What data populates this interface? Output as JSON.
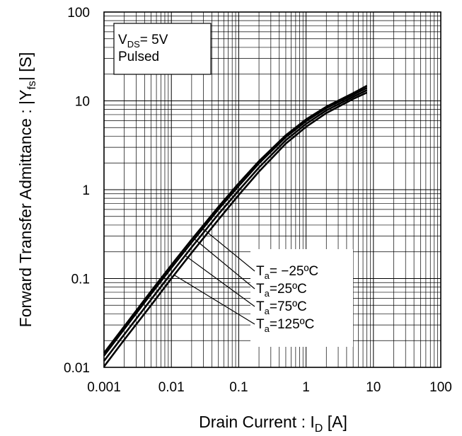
{
  "chart_data": {
    "type": "line",
    "x_scale": "log",
    "y_scale": "log",
    "xlim": [
      0.001,
      100
    ],
    "ylim": [
      0.01,
      100
    ],
    "grid": true,
    "x_ticks": [
      "0.001",
      "0.01",
      "0.1",
      "1",
      "10",
      "100"
    ],
    "y_ticks": [
      "0.01",
      "0.1",
      "1",
      "10",
      "100"
    ],
    "xlabel": {
      "main": "Drain Current : I",
      "sub": "D",
      "unit": " [A]"
    },
    "ylabel": {
      "main": "Forward Transfer Admittance : |Y",
      "sub": "fs",
      "unit": "| [S]"
    },
    "conditions": {
      "line1": {
        "main": "V",
        "sub": "DS",
        "rest": "= 5V"
      },
      "line2": "Pulsed"
    },
    "series": [
      {
        "name": {
          "main": "T",
          "sub": "a",
          "rest": "= −25ºC"
        },
        "x": [
          0.001,
          0.002,
          0.005,
          0.01,
          0.02,
          0.05,
          0.1,
          0.2,
          0.5,
          1,
          2,
          5,
          8
        ],
        "y": [
          0.0145,
          0.029,
          0.072,
          0.142,
          0.275,
          0.64,
          1.18,
          2.1,
          4.1,
          6.2,
          8.6,
          12.2,
          14.8
        ]
      },
      {
        "name": {
          "main": "T",
          "sub": "a",
          "rest": "=25ºC"
        },
        "x": [
          0.001,
          0.002,
          0.005,
          0.01,
          0.02,
          0.05,
          0.1,
          0.2,
          0.5,
          1,
          2,
          5,
          8
        ],
        "y": [
          0.0135,
          0.027,
          0.067,
          0.132,
          0.255,
          0.6,
          1.1,
          1.98,
          3.9,
          5.9,
          8.3,
          11.7,
          14.0
        ]
      },
      {
        "name": {
          "main": "T",
          "sub": "a",
          "rest": "=75ºC"
        },
        "x": [
          0.001,
          0.002,
          0.005,
          0.01,
          0.02,
          0.05,
          0.1,
          0.2,
          0.5,
          1,
          2,
          5,
          8
        ],
        "y": [
          0.0118,
          0.0235,
          0.058,
          0.115,
          0.225,
          0.53,
          0.98,
          1.78,
          3.6,
          5.5,
          7.8,
          11.1,
          13.2
        ]
      },
      {
        "name": {
          "main": "T",
          "sub": "a",
          "rest": "=125ºC"
        },
        "x": [
          0.001,
          0.002,
          0.005,
          0.01,
          0.02,
          0.05,
          0.1,
          0.2,
          0.5,
          1,
          2,
          5,
          8
        ],
        "y": [
          0.0102,
          0.0205,
          0.05,
          0.1,
          0.195,
          0.46,
          0.87,
          1.6,
          3.3,
          5.1,
          7.3,
          10.5,
          12.4
        ]
      }
    ]
  }
}
